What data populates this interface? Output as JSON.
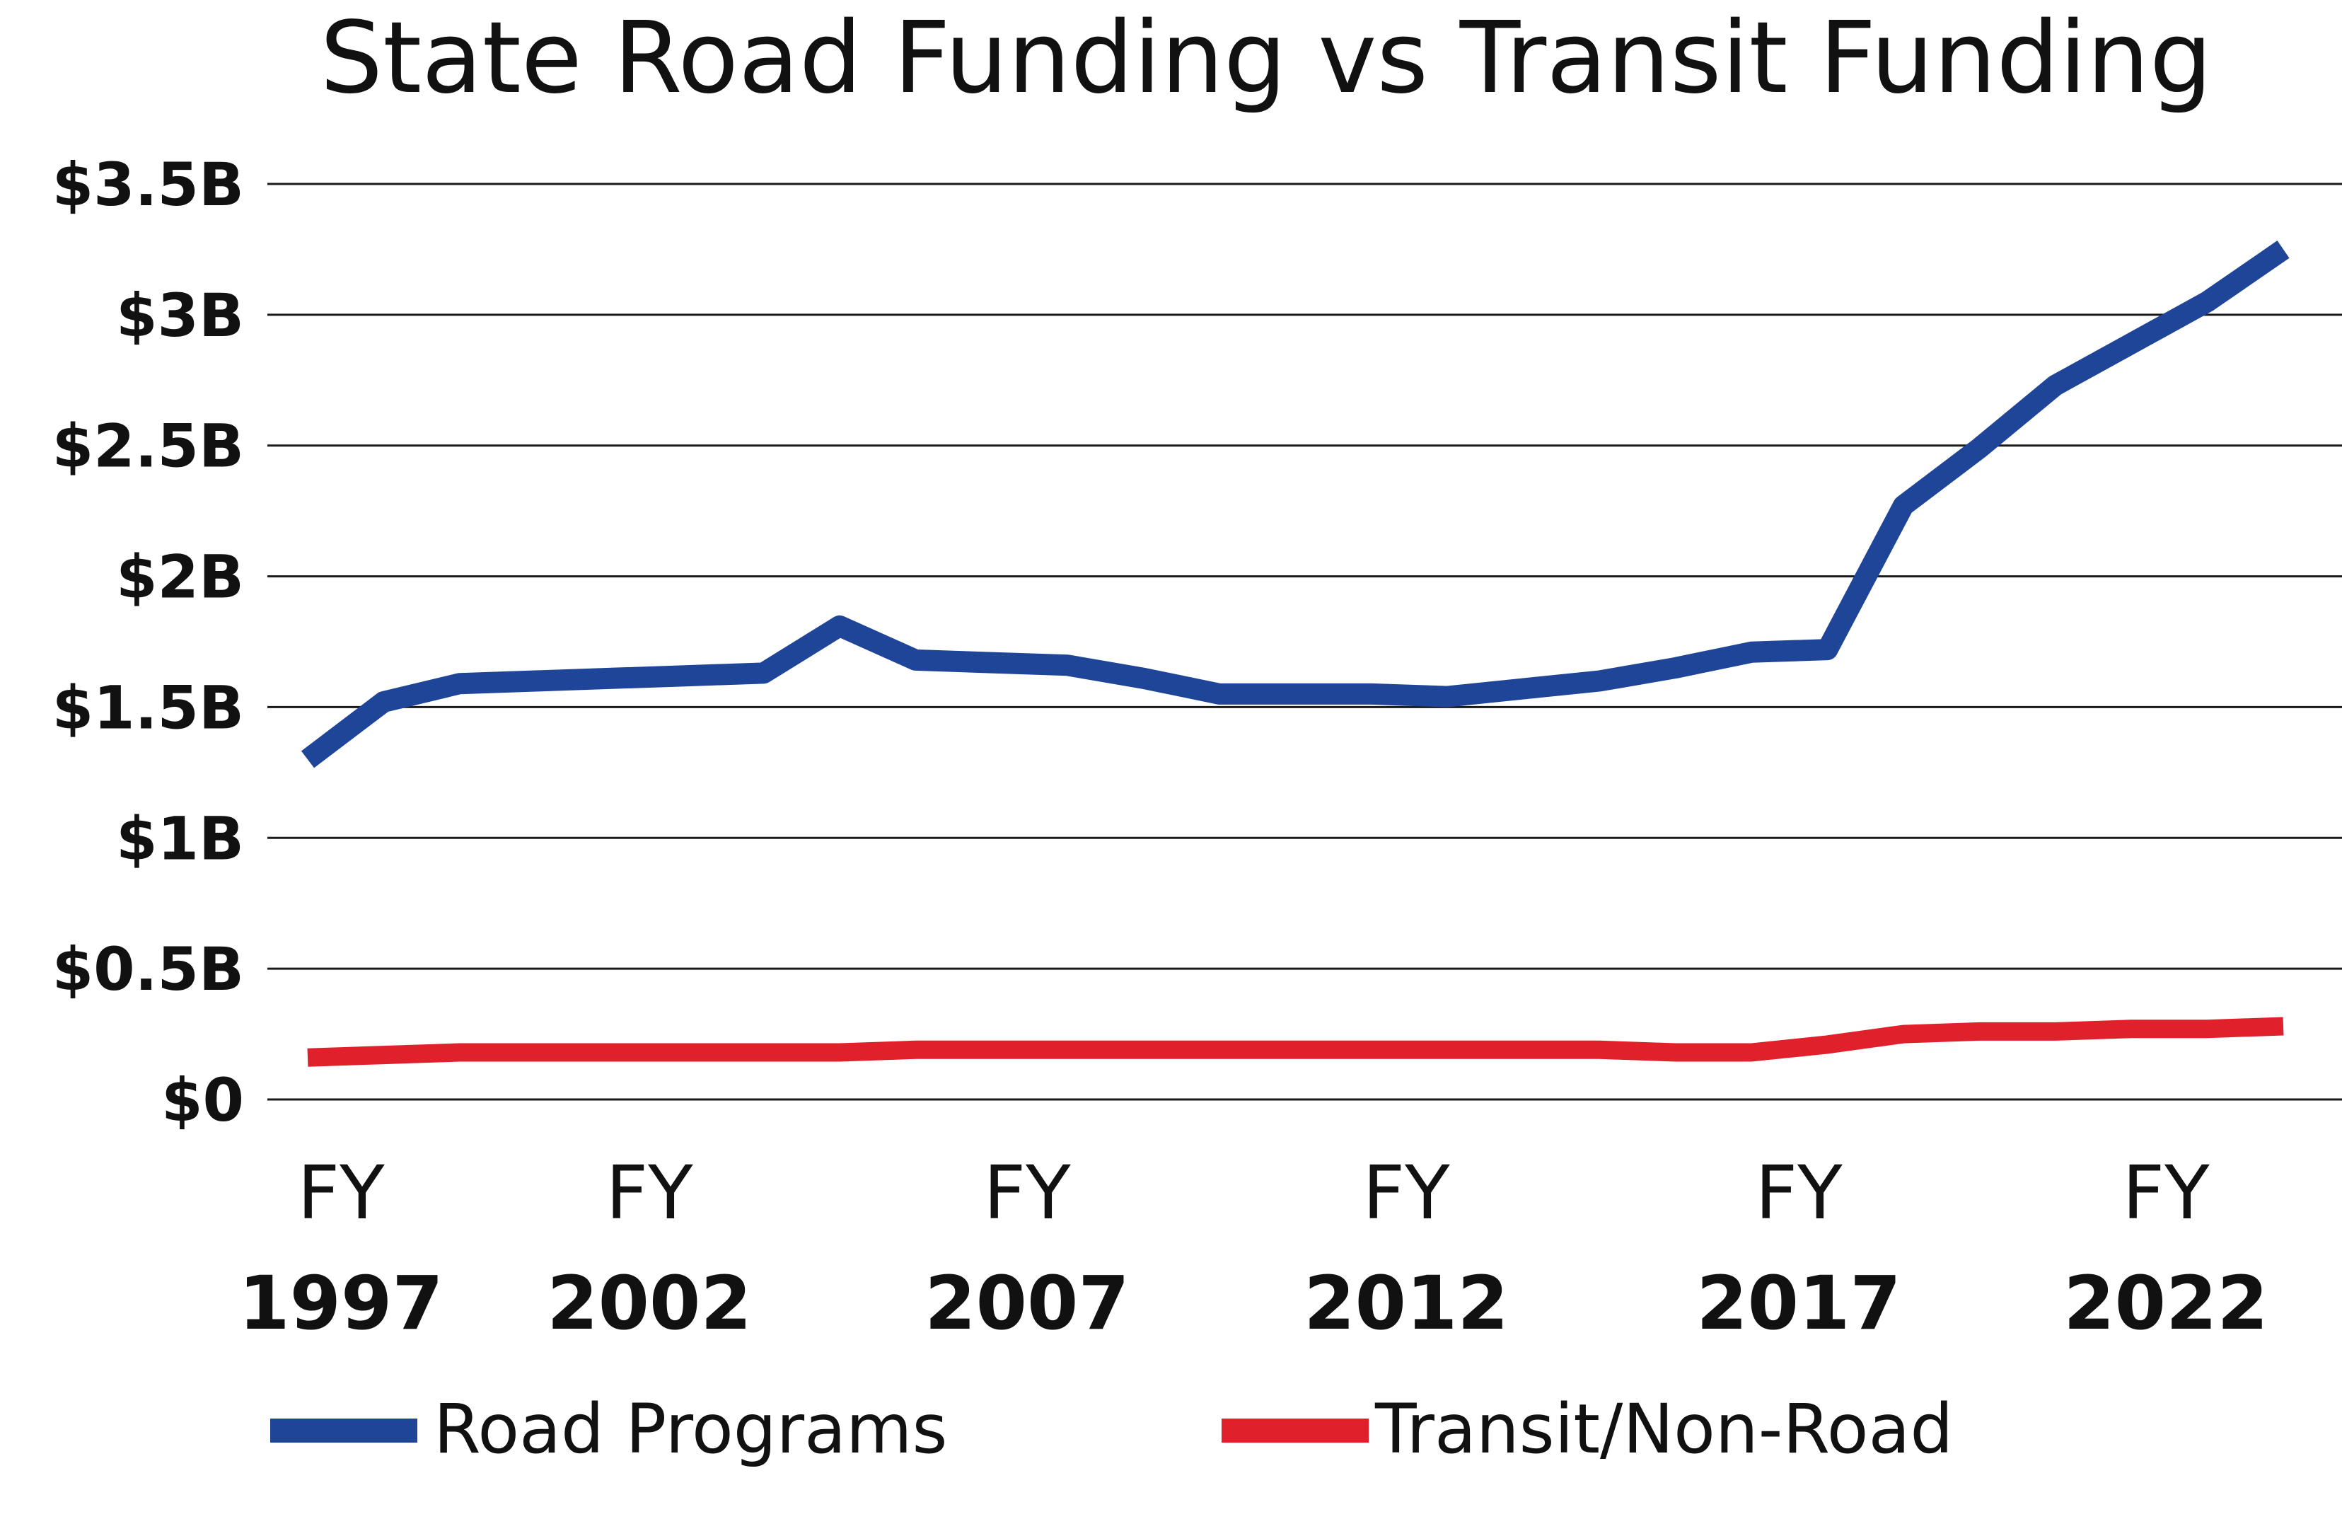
{
  "chart_data": {
    "type": "line",
    "title": "State Road Funding vs Transit Funding",
    "xlabel": "",
    "ylabel": "",
    "x": [
      1997,
      1998,
      1999,
      2000,
      2001,
      2002,
      2003,
      2004,
      2005,
      2006,
      2007,
      2008,
      2009,
      2010,
      2011,
      2012,
      2013,
      2014,
      2015,
      2016,
      2017,
      2018,
      2019,
      2020,
      2021,
      2022,
      2023
    ],
    "xlim": [
      1997,
      2023
    ],
    "ylim": [
      0,
      3.5
    ],
    "y_ticks": [
      {
        "value": 0,
        "label": "$0"
      },
      {
        "value": 0.5,
        "label": "$0.5B"
      },
      {
        "value": 1,
        "label": "$1B"
      },
      {
        "value": 1.5,
        "label": "$1.5B"
      },
      {
        "value": 2,
        "label": "$2B"
      },
      {
        "value": 2.5,
        "label": "$2.5B"
      },
      {
        "value": 3,
        "label": "$3B"
      },
      {
        "value": 3.5,
        "label": "$3.5B"
      }
    ],
    "x_ticks": [
      {
        "value": 1997,
        "line1": "FY",
        "line2": "1997"
      },
      {
        "value": 2002,
        "line1": "FY",
        "line2": "2002"
      },
      {
        "value": 2007,
        "line1": "FY",
        "line2": "2007"
      },
      {
        "value": 2012,
        "line1": "FY",
        "line2": "2012"
      },
      {
        "value": 2017,
        "line1": "FY",
        "line2": "2017"
      },
      {
        "value": 2022,
        "line1": "FY",
        "line2": "2022"
      }
    ],
    "grid": true,
    "legend_position": "bottom",
    "series": [
      {
        "name": "Road Programs",
        "color": "#1f4599",
        "values": [
          1.3,
          1.52,
          1.59,
          1.6,
          1.61,
          1.62,
          1.63,
          1.81,
          1.68,
          1.67,
          1.66,
          1.61,
          1.55,
          1.55,
          1.55,
          1.54,
          1.57,
          1.6,
          1.65,
          1.71,
          1.72,
          2.27,
          2.49,
          2.73,
          2.89,
          3.05,
          3.25
        ]
      },
      {
        "name": "Transit/Non-Road",
        "color": "#e0202b",
        "values": [
          0.16,
          0.17,
          0.18,
          0.18,
          0.18,
          0.18,
          0.18,
          0.18,
          0.19,
          0.19,
          0.19,
          0.19,
          0.19,
          0.19,
          0.19,
          0.19,
          0.19,
          0.19,
          0.18,
          0.18,
          0.21,
          0.25,
          0.26,
          0.26,
          0.27,
          0.27,
          0.28
        ]
      }
    ]
  }
}
